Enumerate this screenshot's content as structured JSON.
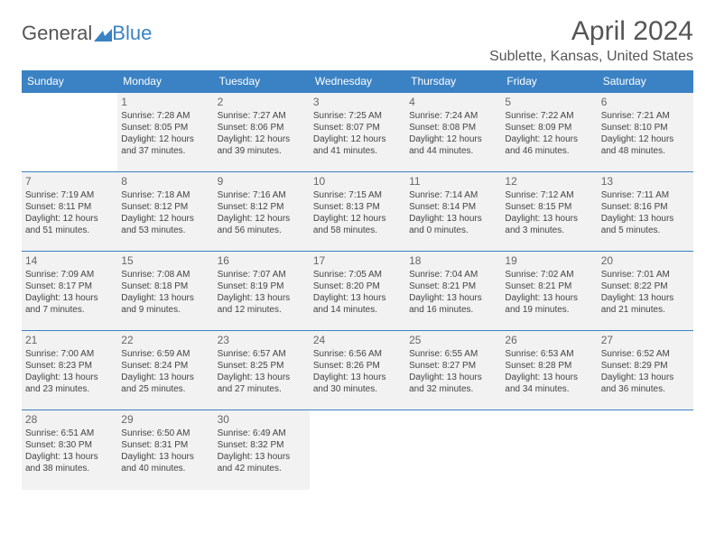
{
  "logo": {
    "text_a": "General",
    "text_b": "Blue"
  },
  "title": "April 2024",
  "location": "Sublette, Kansas, United States",
  "colors": {
    "brand_blue": "#3b82c4",
    "header_text": "#555555",
    "cell_bg": "#f2f2f2",
    "body_text": "#444444",
    "page_bg": "#ffffff"
  },
  "typography": {
    "title_fontsize_pt": 22,
    "location_fontsize_pt": 12,
    "dayhead_fontsize_pt": 9,
    "cell_fontsize_pt": 7.5
  },
  "calendar": {
    "type": "table",
    "day_headers": [
      "Sunday",
      "Monday",
      "Tuesday",
      "Wednesday",
      "Thursday",
      "Friday",
      "Saturday"
    ],
    "weeks": [
      [
        null,
        {
          "n": "1",
          "sunrise": "Sunrise: 7:28 AM",
          "sunset": "Sunset: 8:05 PM",
          "d1": "Daylight: 12 hours",
          "d2": "and 37 minutes."
        },
        {
          "n": "2",
          "sunrise": "Sunrise: 7:27 AM",
          "sunset": "Sunset: 8:06 PM",
          "d1": "Daylight: 12 hours",
          "d2": "and 39 minutes."
        },
        {
          "n": "3",
          "sunrise": "Sunrise: 7:25 AM",
          "sunset": "Sunset: 8:07 PM",
          "d1": "Daylight: 12 hours",
          "d2": "and 41 minutes."
        },
        {
          "n": "4",
          "sunrise": "Sunrise: 7:24 AM",
          "sunset": "Sunset: 8:08 PM",
          "d1": "Daylight: 12 hours",
          "d2": "and 44 minutes."
        },
        {
          "n": "5",
          "sunrise": "Sunrise: 7:22 AM",
          "sunset": "Sunset: 8:09 PM",
          "d1": "Daylight: 12 hours",
          "d2": "and 46 minutes."
        },
        {
          "n": "6",
          "sunrise": "Sunrise: 7:21 AM",
          "sunset": "Sunset: 8:10 PM",
          "d1": "Daylight: 12 hours",
          "d2": "and 48 minutes."
        }
      ],
      [
        {
          "n": "7",
          "sunrise": "Sunrise: 7:19 AM",
          "sunset": "Sunset: 8:11 PM",
          "d1": "Daylight: 12 hours",
          "d2": "and 51 minutes."
        },
        {
          "n": "8",
          "sunrise": "Sunrise: 7:18 AM",
          "sunset": "Sunset: 8:12 PM",
          "d1": "Daylight: 12 hours",
          "d2": "and 53 minutes."
        },
        {
          "n": "9",
          "sunrise": "Sunrise: 7:16 AM",
          "sunset": "Sunset: 8:12 PM",
          "d1": "Daylight: 12 hours",
          "d2": "and 56 minutes."
        },
        {
          "n": "10",
          "sunrise": "Sunrise: 7:15 AM",
          "sunset": "Sunset: 8:13 PM",
          "d1": "Daylight: 12 hours",
          "d2": "and 58 minutes."
        },
        {
          "n": "11",
          "sunrise": "Sunrise: 7:14 AM",
          "sunset": "Sunset: 8:14 PM",
          "d1": "Daylight: 13 hours",
          "d2": "and 0 minutes."
        },
        {
          "n": "12",
          "sunrise": "Sunrise: 7:12 AM",
          "sunset": "Sunset: 8:15 PM",
          "d1": "Daylight: 13 hours",
          "d2": "and 3 minutes."
        },
        {
          "n": "13",
          "sunrise": "Sunrise: 7:11 AM",
          "sunset": "Sunset: 8:16 PM",
          "d1": "Daylight: 13 hours",
          "d2": "and 5 minutes."
        }
      ],
      [
        {
          "n": "14",
          "sunrise": "Sunrise: 7:09 AM",
          "sunset": "Sunset: 8:17 PM",
          "d1": "Daylight: 13 hours",
          "d2": "and 7 minutes."
        },
        {
          "n": "15",
          "sunrise": "Sunrise: 7:08 AM",
          "sunset": "Sunset: 8:18 PM",
          "d1": "Daylight: 13 hours",
          "d2": "and 9 minutes."
        },
        {
          "n": "16",
          "sunrise": "Sunrise: 7:07 AM",
          "sunset": "Sunset: 8:19 PM",
          "d1": "Daylight: 13 hours",
          "d2": "and 12 minutes."
        },
        {
          "n": "17",
          "sunrise": "Sunrise: 7:05 AM",
          "sunset": "Sunset: 8:20 PM",
          "d1": "Daylight: 13 hours",
          "d2": "and 14 minutes."
        },
        {
          "n": "18",
          "sunrise": "Sunrise: 7:04 AM",
          "sunset": "Sunset: 8:21 PM",
          "d1": "Daylight: 13 hours",
          "d2": "and 16 minutes."
        },
        {
          "n": "19",
          "sunrise": "Sunrise: 7:02 AM",
          "sunset": "Sunset: 8:21 PM",
          "d1": "Daylight: 13 hours",
          "d2": "and 19 minutes."
        },
        {
          "n": "20",
          "sunrise": "Sunrise: 7:01 AM",
          "sunset": "Sunset: 8:22 PM",
          "d1": "Daylight: 13 hours",
          "d2": "and 21 minutes."
        }
      ],
      [
        {
          "n": "21",
          "sunrise": "Sunrise: 7:00 AM",
          "sunset": "Sunset: 8:23 PM",
          "d1": "Daylight: 13 hours",
          "d2": "and 23 minutes."
        },
        {
          "n": "22",
          "sunrise": "Sunrise: 6:59 AM",
          "sunset": "Sunset: 8:24 PM",
          "d1": "Daylight: 13 hours",
          "d2": "and 25 minutes."
        },
        {
          "n": "23",
          "sunrise": "Sunrise: 6:57 AM",
          "sunset": "Sunset: 8:25 PM",
          "d1": "Daylight: 13 hours",
          "d2": "and 27 minutes."
        },
        {
          "n": "24",
          "sunrise": "Sunrise: 6:56 AM",
          "sunset": "Sunset: 8:26 PM",
          "d1": "Daylight: 13 hours",
          "d2": "and 30 minutes."
        },
        {
          "n": "25",
          "sunrise": "Sunrise: 6:55 AM",
          "sunset": "Sunset: 8:27 PM",
          "d1": "Daylight: 13 hours",
          "d2": "and 32 minutes."
        },
        {
          "n": "26",
          "sunrise": "Sunrise: 6:53 AM",
          "sunset": "Sunset: 8:28 PM",
          "d1": "Daylight: 13 hours",
          "d2": "and 34 minutes."
        },
        {
          "n": "27",
          "sunrise": "Sunrise: 6:52 AM",
          "sunset": "Sunset: 8:29 PM",
          "d1": "Daylight: 13 hours",
          "d2": "and 36 minutes."
        }
      ],
      [
        {
          "n": "28",
          "sunrise": "Sunrise: 6:51 AM",
          "sunset": "Sunset: 8:30 PM",
          "d1": "Daylight: 13 hours",
          "d2": "and 38 minutes."
        },
        {
          "n": "29",
          "sunrise": "Sunrise: 6:50 AM",
          "sunset": "Sunset: 8:31 PM",
          "d1": "Daylight: 13 hours",
          "d2": "and 40 minutes."
        },
        {
          "n": "30",
          "sunrise": "Sunrise: 6:49 AM",
          "sunset": "Sunset: 8:32 PM",
          "d1": "Daylight: 13 hours",
          "d2": "and 42 minutes."
        },
        null,
        null,
        null,
        null
      ]
    ]
  }
}
